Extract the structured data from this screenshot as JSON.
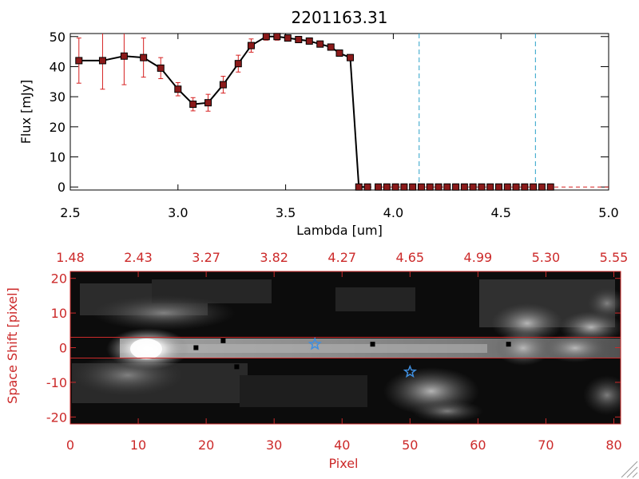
{
  "chart_data": [
    {
      "type": "line",
      "title": "2201163.31",
      "xlabel": "Lambda [um]",
      "ylabel": "Flux [mJy]",
      "xlim": [
        2.5,
        5.0
      ],
      "ylim": [
        -1,
        51
      ],
      "x_ticks": [
        "2.5",
        "3.0",
        "3.5",
        "4.0",
        "4.5",
        "5.0"
      ],
      "x_tick_values": [
        2.5,
        3.0,
        3.5,
        4.0,
        4.5,
        5.0
      ],
      "y_ticks": [
        "0",
        "10",
        "20",
        "30",
        "40",
        "50"
      ],
      "y_tick_values": [
        0,
        10,
        20,
        30,
        40,
        50
      ],
      "colors": {
        "line": "#000000",
        "marker": "#8b1a1a",
        "errorbar": "#d62020",
        "guide": "#2aa1c8",
        "zero": "#d62020"
      },
      "vertical_guides": [
        4.12,
        4.66
      ],
      "series": [
        {
          "x": [
            2.54,
            2.65,
            2.75,
            2.84,
            2.92,
            3.0,
            3.07,
            3.14,
            3.21,
            3.28,
            3.34,
            3.41,
            3.46,
            3.51,
            3.56,
            3.61,
            3.66,
            3.71,
            3.75,
            3.8,
            3.84,
            3.88
          ],
          "y": [
            42,
            42,
            43.5,
            43,
            39.5,
            32.5,
            27.5,
            28,
            34,
            41,
            47,
            50,
            50,
            49.5,
            49,
            48.5,
            47.5,
            46.5,
            44.5,
            43,
            0,
            0
          ],
          "err": [
            7.5,
            9.5,
            9.5,
            6.5,
            3.5,
            2.2,
            2.2,
            2.8,
            2.8,
            2.8,
            2.2,
            1.2,
            1.2,
            1,
            1,
            1,
            1,
            1,
            1,
            1,
            0,
            0
          ]
        },
        {
          "x": [
            3.93,
            3.97,
            4.01,
            4.05,
            4.09,
            4.13,
            4.17,
            4.21,
            4.25,
            4.29,
            4.33,
            4.37,
            4.41,
            4.45,
            4.49,
            4.53,
            4.57,
            4.61,
            4.65,
            4.69,
            4.73
          ],
          "y": [
            0,
            0,
            0,
            0,
            0,
            0,
            0,
            0,
            0,
            0,
            0,
            0,
            0,
            0,
            0,
            0,
            0,
            0,
            0,
            0,
            0
          ]
        }
      ]
    },
    {
      "type": "heatmap",
      "xlabel": "Pixel",
      "ylabel": "Space Shift [pixel]",
      "xlim": [
        0,
        81
      ],
      "ylim": [
        -22,
        22
      ],
      "x_ticks": [
        "0",
        "10",
        "20",
        "30",
        "40",
        "50",
        "60",
        "70",
        "80"
      ],
      "x_tick_values": [
        0,
        10,
        20,
        30,
        40,
        50,
        60,
        70,
        80
      ],
      "y_ticks": [
        "20",
        "10",
        "0",
        "-10",
        "-20"
      ],
      "y_tick_values": [
        20,
        10,
        0,
        -10,
        -20
      ],
      "top_ticks": [
        "1.48",
        "2.43",
        "3.27",
        "3.82",
        "4.27",
        "4.65",
        "4.99",
        "5.30",
        "5.55"
      ],
      "top_tick_values": [
        0,
        10,
        20,
        30,
        40,
        50,
        60,
        70,
        80
      ],
      "aperture_lines": [
        3,
        -3
      ],
      "star_markers": [
        {
          "x": 36,
          "y": 1
        },
        {
          "x": 50,
          "y": -7
        }
      ],
      "dark_points": [
        {
          "x": 18.5,
          "y": 0
        },
        {
          "x": 22.5,
          "y": 2
        },
        {
          "x": 24.5,
          "y": -5.5
        },
        {
          "x": 44.5,
          "y": 1
        },
        {
          "x": 64.5,
          "y": 1
        }
      ],
      "colors": {
        "axis": "#cc2a2a",
        "star": "#3f8fe0"
      }
    }
  ]
}
